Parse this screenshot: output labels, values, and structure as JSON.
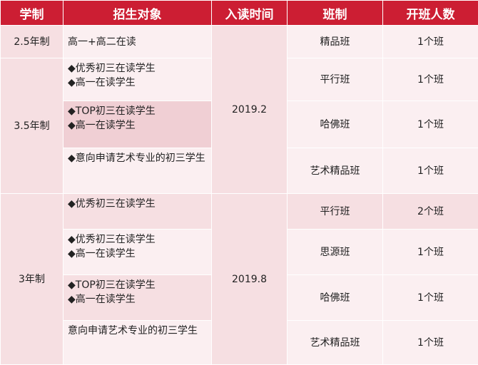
{
  "headers": [
    "学制",
    "招生对象",
    "入读时间",
    "班制",
    "开班人数"
  ],
  "rows": [
    {
      "system": "2.5年制",
      "targets": [
        "高一+高二在读"
      ],
      "time": "2019.2",
      "class_type": "精品班",
      "count": "1个班"
    },
    {
      "system": "3.5年制",
      "targets": [
        "◆优秀初三在读学生",
        "◆高一在读学生"
      ],
      "class_type": "平行班",
      "count": "1个班"
    },
    {
      "targets": [
        "◆TOP初三在读学生",
        "◆高一在读学生"
      ],
      "class_type": "哈佛班",
      "count": "1个班"
    },
    {
      "targets": [
        "◆意向申请艺术专业的初三学生"
      ],
      "class_type": "艺术精品班",
      "count": "1个班"
    },
    {
      "system": "3年制",
      "targets": [
        "◆优秀初三在读学生"
      ],
      "time": "2019.8",
      "class_type": "平行班",
      "count": "2个班"
    },
    {
      "targets": [
        "◆优秀初三在读学生",
        "◆高一在读学生"
      ],
      "class_type": "思源班",
      "count": "1个班"
    },
    {
      "targets": [
        "◆TOP初三在读学生",
        "◆高一在读学生"
      ],
      "class_type": "哈佛班",
      "count": "1个班"
    },
    {
      "targets": [
        "意向申请艺术专业的初三学生"
      ],
      "class_type": "艺术精品班",
      "count": "1个班"
    }
  ]
}
